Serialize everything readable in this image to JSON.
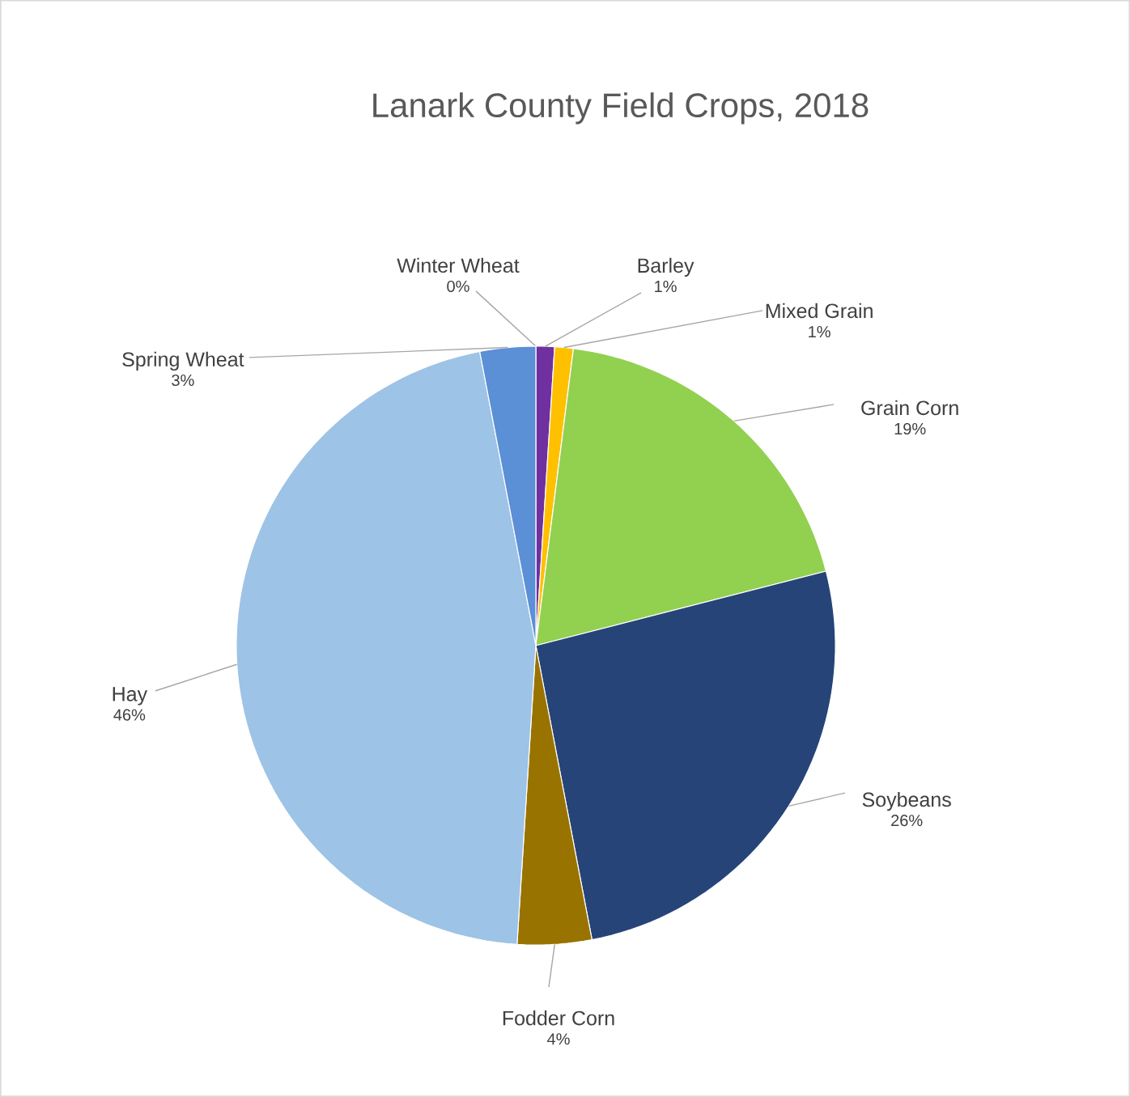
{
  "chart_data": {
    "type": "pie",
    "title": "Lanark County Field Crops, 2018",
    "categories": [
      "Winter Wheat",
      "Barley",
      "Mixed Grain",
      "Grain Corn",
      "Soybeans",
      "Fodder Corn",
      "Hay",
      "Spring Wheat"
    ],
    "values": [
      0,
      1,
      1,
      19,
      26,
      4,
      46,
      3
    ],
    "value_labels": [
      "0%",
      "1%",
      "1%",
      "19%",
      "26%",
      "4%",
      "46%",
      "3%"
    ],
    "colors": [
      "#ed7d31",
      "#7030a0",
      "#ffc000",
      "#92d050",
      "#264478",
      "#997300",
      "#9dc3e6",
      "#5b8fd6"
    ]
  }
}
